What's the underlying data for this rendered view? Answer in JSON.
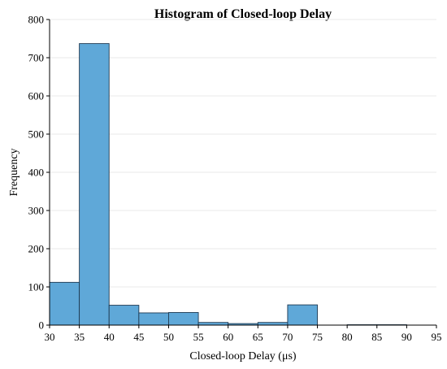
{
  "chart_data": {
    "type": "bar",
    "title": "Histogram of Closed-loop Delay",
    "xlabel": "Closed-loop Delay (μs)",
    "ylabel": "Frequency",
    "xlim": [
      30,
      95
    ],
    "ylim": [
      0,
      800
    ],
    "x_ticks": [
      30,
      35,
      40,
      45,
      50,
      55,
      60,
      65,
      70,
      75,
      80,
      85,
      90,
      95
    ],
    "y_ticks": [
      0,
      100,
      200,
      300,
      400,
      500,
      600,
      700,
      800
    ],
    "bins": [
      {
        "start": 30,
        "end": 35,
        "count": 112
      },
      {
        "start": 35,
        "end": 40,
        "count": 737
      },
      {
        "start": 40,
        "end": 45,
        "count": 52
      },
      {
        "start": 45,
        "end": 50,
        "count": 32
      },
      {
        "start": 50,
        "end": 55,
        "count": 33
      },
      {
        "start": 55,
        "end": 60,
        "count": 7
      },
      {
        "start": 60,
        "end": 65,
        "count": 4
      },
      {
        "start": 65,
        "end": 70,
        "count": 7
      },
      {
        "start": 70,
        "end": 75,
        "count": 53
      },
      {
        "start": 75,
        "end": 80,
        "count": 0
      },
      {
        "start": 80,
        "end": 85,
        "count": 1
      },
      {
        "start": 85,
        "end": 90,
        "count": 1
      },
      {
        "start": 90,
        "end": 95,
        "count": 0
      }
    ],
    "bar_color": "#5fa8d8",
    "grid": "horizontal",
    "legend": "none"
  }
}
